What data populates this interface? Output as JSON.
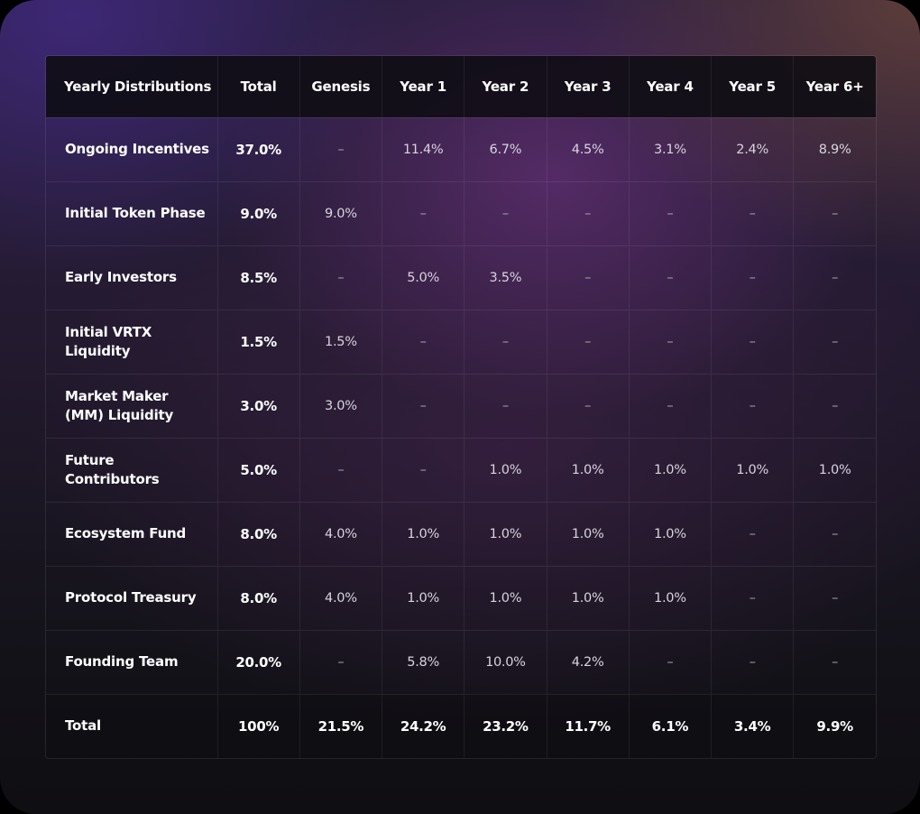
{
  "table": {
    "headers": [
      "Yearly Distributions",
      "Total",
      "Genesis",
      "Year 1",
      "Year 2",
      "Year 3",
      "Year 4",
      "Year 5",
      "Year 6+"
    ],
    "rows": [
      {
        "label": "Ongoing Incentives",
        "cells": [
          "37.0%",
          "–",
          "11.4%",
          "6.7%",
          "4.5%",
          "3.1%",
          "2.4%",
          "8.9%"
        ]
      },
      {
        "label": "Initial Token Phase",
        "cells": [
          "9.0%",
          "9.0%",
          "–",
          "–",
          "–",
          "–",
          "–",
          "–"
        ]
      },
      {
        "label": "Early Investors",
        "cells": [
          "8.5%",
          "–",
          "5.0%",
          "3.5%",
          "–",
          "–",
          "–",
          "–"
        ]
      },
      {
        "label": "Initial VRTX Liquidity",
        "cells": [
          "1.5%",
          "1.5%",
          "–",
          "–",
          "–",
          "–",
          "–",
          "–"
        ]
      },
      {
        "label": "Market Maker (MM) Liquidity",
        "cells": [
          "3.0%",
          "3.0%",
          "–",
          "–",
          "–",
          "–",
          "–",
          "–"
        ]
      },
      {
        "label": "Future Contributors",
        "cells": [
          "5.0%",
          "–",
          "–",
          "1.0%",
          "1.0%",
          "1.0%",
          "1.0%",
          "1.0%"
        ]
      },
      {
        "label": "Ecosystem Fund",
        "cells": [
          "8.0%",
          "4.0%",
          "1.0%",
          "1.0%",
          "1.0%",
          "1.0%",
          "–",
          "–"
        ]
      },
      {
        "label": "Protocol Treasury",
        "cells": [
          "8.0%",
          "4.0%",
          "1.0%",
          "1.0%",
          "1.0%",
          "1.0%",
          "–",
          "–"
        ]
      },
      {
        "label": "Founding Team",
        "cells": [
          "20.0%",
          "–",
          "5.8%",
          "10.0%",
          "4.2%",
          "–",
          "–",
          "–"
        ]
      }
    ],
    "total_row": {
      "label": "Total",
      "cells": [
        "100%",
        "21.5%",
        "24.2%",
        "23.2%",
        "11.7%",
        "6.1%",
        "3.4%",
        "9.9%"
      ]
    }
  }
}
